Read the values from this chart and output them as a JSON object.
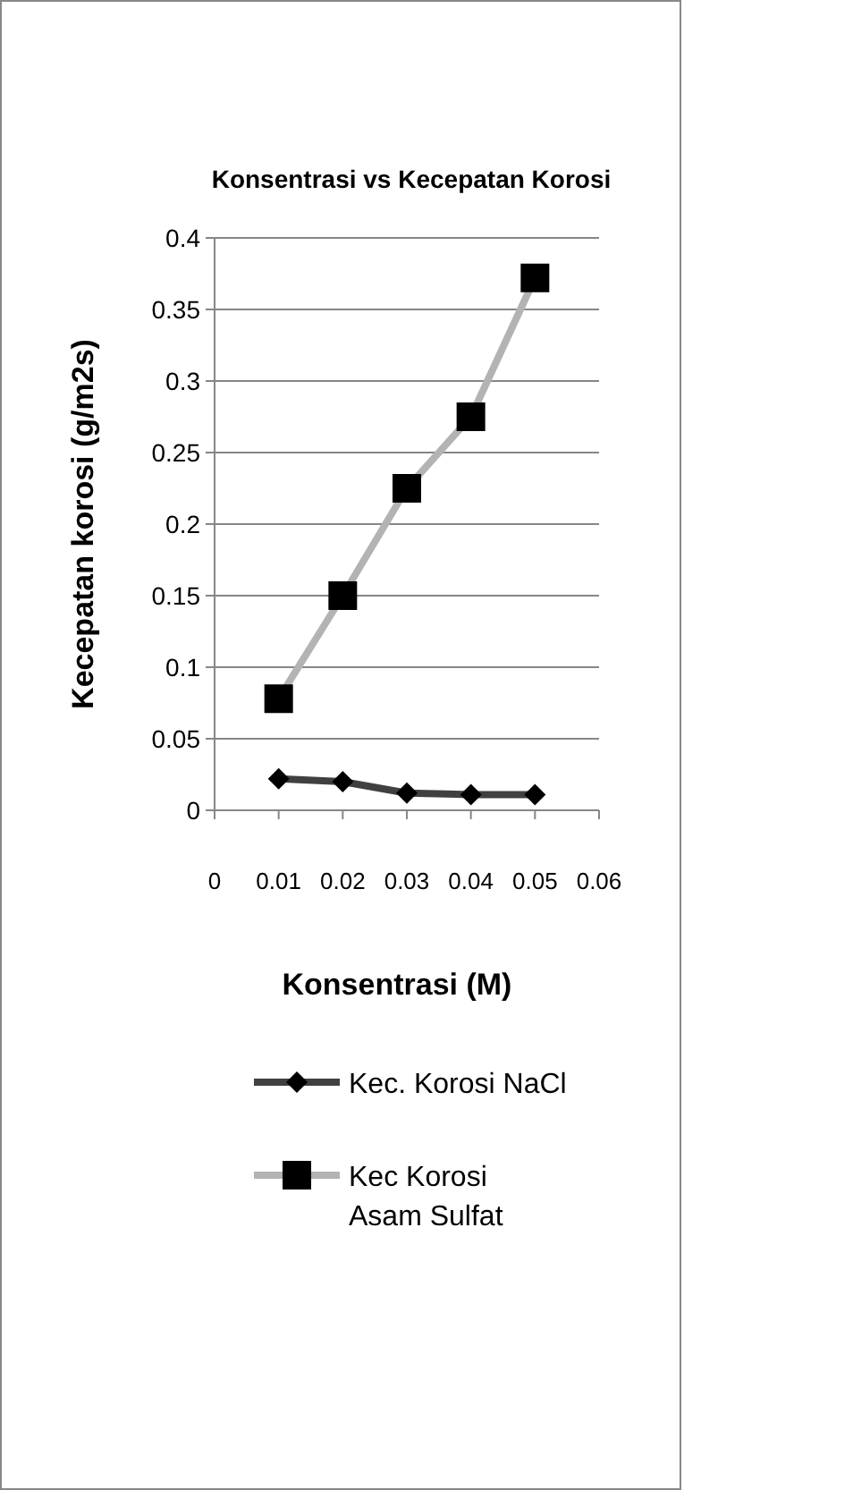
{
  "chart_data": {
    "type": "line",
    "title": "Konsentrasi vs  Kecepatan Korosi",
    "xlabel": "Konsentrasi (M)",
    "ylabel": "Kecepatan korosi (g/m2s)",
    "x": [
      0.01,
      0.02,
      0.03,
      0.04,
      0.05
    ],
    "series": [
      {
        "name": "Kec. Korosi NaCl",
        "color": "#404040",
        "marker": "diamond",
        "values": [
          0.022,
          0.02,
          0.012,
          0.011,
          0.011
        ]
      },
      {
        "name": "Kec Korosi Asam Sulfat",
        "color": "#b3b3b3",
        "marker": "square",
        "values": [
          0.078,
          0.15,
          0.225,
          0.275,
          0.372
        ]
      }
    ],
    "xlim": [
      0,
      0.06
    ],
    "xticks": [
      0,
      0.01,
      0.02,
      0.03,
      0.04,
      0.05,
      0.06
    ],
    "ylim": [
      0,
      0.4
    ],
    "yticks": [
      0,
      0.05,
      0.1,
      0.15,
      0.2,
      0.25,
      0.3,
      0.35,
      0.4
    ],
    "grid": "y",
    "legend": "bottom"
  }
}
